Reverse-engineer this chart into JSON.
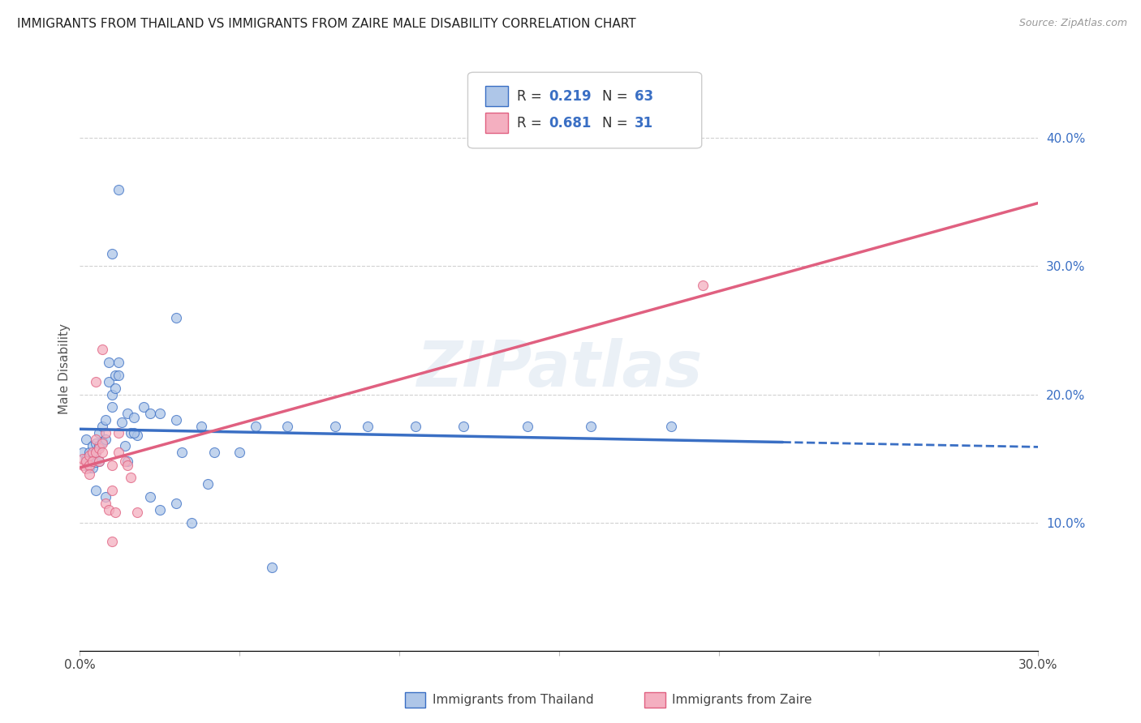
{
  "title": "IMMIGRANTS FROM THAILAND VS IMMIGRANTS FROM ZAIRE MALE DISABILITY CORRELATION CHART",
  "source": "Source: ZipAtlas.com",
  "ylabel": "Male Disability",
  "xlim": [
    0.0,
    0.3
  ],
  "ylim": [
    0.0,
    0.44
  ],
  "legend_r1": "0.219",
  "legend_n1": "63",
  "legend_r2": "0.681",
  "legend_n2": "31",
  "thailand_color": "#aec6e8",
  "zaire_color": "#f4afc0",
  "thailand_line_color": "#3a6fc4",
  "zaire_line_color": "#e06080",
  "marker_size": 75,
  "marker_alpha": 0.75,
  "thailand_x": [
    0.001,
    0.002,
    0.002,
    0.003,
    0.003,
    0.003,
    0.004,
    0.004,
    0.004,
    0.005,
    0.005,
    0.005,
    0.006,
    0.006,
    0.006,
    0.007,
    0.007,
    0.008,
    0.008,
    0.009,
    0.009,
    0.01,
    0.01,
    0.011,
    0.011,
    0.012,
    0.012,
    0.013,
    0.014,
    0.015,
    0.016,
    0.017,
    0.018,
    0.02,
    0.022,
    0.025,
    0.03,
    0.032,
    0.038,
    0.042,
    0.05,
    0.055,
    0.065,
    0.08,
    0.09,
    0.105,
    0.12,
    0.14,
    0.16,
    0.185,
    0.005,
    0.008,
    0.015,
    0.017,
    0.022,
    0.025,
    0.03,
    0.035,
    0.04,
    0.012,
    0.01,
    0.03,
    0.06
  ],
  "thailand_y": [
    0.155,
    0.15,
    0.165,
    0.155,
    0.148,
    0.143,
    0.16,
    0.15,
    0.143,
    0.162,
    0.155,
    0.147,
    0.17,
    0.16,
    0.148,
    0.175,
    0.163,
    0.18,
    0.165,
    0.225,
    0.21,
    0.2,
    0.19,
    0.215,
    0.205,
    0.225,
    0.215,
    0.178,
    0.16,
    0.185,
    0.17,
    0.182,
    0.168,
    0.19,
    0.185,
    0.185,
    0.18,
    0.155,
    0.175,
    0.155,
    0.155,
    0.175,
    0.175,
    0.175,
    0.175,
    0.175,
    0.175,
    0.175,
    0.175,
    0.175,
    0.125,
    0.12,
    0.148,
    0.17,
    0.12,
    0.11,
    0.115,
    0.1,
    0.13,
    0.36,
    0.31,
    0.26,
    0.065
  ],
  "zaire_x": [
    0.001,
    0.001,
    0.002,
    0.002,
    0.003,
    0.003,
    0.003,
    0.004,
    0.004,
    0.005,
    0.005,
    0.006,
    0.006,
    0.007,
    0.007,
    0.008,
    0.008,
    0.009,
    0.01,
    0.011,
    0.012,
    0.014,
    0.016,
    0.018,
    0.005,
    0.007,
    0.01,
    0.012,
    0.015,
    0.195,
    0.01
  ],
  "zaire_y": [
    0.145,
    0.15,
    0.148,
    0.142,
    0.152,
    0.145,
    0.138,
    0.155,
    0.148,
    0.165,
    0.155,
    0.158,
    0.148,
    0.162,
    0.155,
    0.17,
    0.115,
    0.11,
    0.125,
    0.108,
    0.155,
    0.148,
    0.135,
    0.108,
    0.21,
    0.235,
    0.145,
    0.17,
    0.145,
    0.285,
    0.085
  ],
  "background_color": "#ffffff",
  "grid_color": "#d0d0d0",
  "watermark": "ZIPatlas",
  "watermark_color": "#c5d5e8",
  "watermark_alpha": 0.35,
  "tline_thailand_x0": 0.0,
  "tline_thailand_x1": 0.22,
  "tline_thailand_xdash": 0.3,
  "tline_zaire_x0": 0.0,
  "tline_zaire_x1": 0.3
}
